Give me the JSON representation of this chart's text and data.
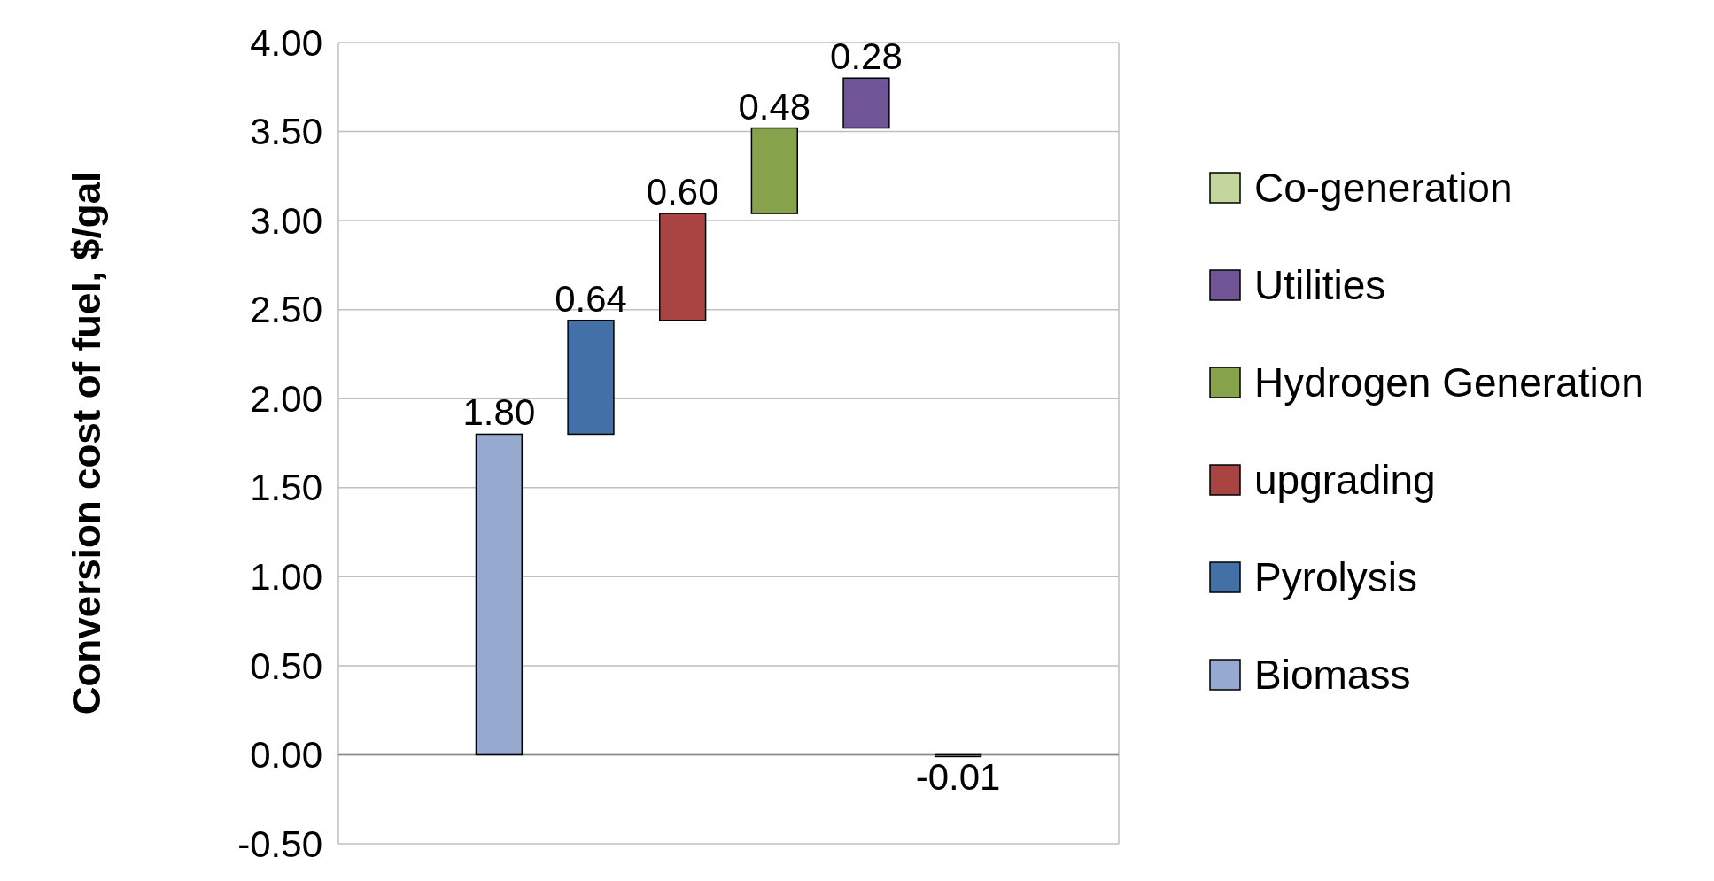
{
  "chart_data": {
    "type": "bar",
    "ylabel": "Conversion cost of fuel, $/gal",
    "categories": [
      null,
      null,
      null,
      null,
      null,
      null,
      null,
      null
    ],
    "series": [
      {
        "name": "Biomass",
        "color": "#95a9d1",
        "values": [
          null,
          1.8,
          null,
          null,
          null,
          null,
          null,
          null
        ],
        "base": [
          null,
          0,
          null,
          null,
          null,
          null,
          null,
          null
        ],
        "value_labels": [
          null,
          "1.80",
          null,
          null,
          null,
          null,
          null,
          null
        ]
      },
      {
        "name": "Pyrolysis",
        "color": "#4470a8",
        "values": [
          null,
          null,
          0.64,
          null,
          null,
          null,
          null,
          null
        ],
        "base": [
          null,
          null,
          1.8,
          null,
          null,
          null,
          null,
          null
        ],
        "value_labels": [
          null,
          null,
          "0.64",
          null,
          null,
          null,
          null,
          null
        ]
      },
      {
        "name": "upgrading",
        "color": "#a94442",
        "values": [
          null,
          null,
          null,
          0.6,
          null,
          null,
          null,
          null
        ],
        "base": [
          null,
          null,
          null,
          2.44,
          null,
          null,
          null,
          null
        ],
        "value_labels": [
          null,
          null,
          null,
          "0.60",
          null,
          null,
          null,
          null
        ]
      },
      {
        "name": "Hydrogen Generation",
        "color": "#86a34b",
        "values": [
          null,
          null,
          null,
          null,
          0.48,
          null,
          null,
          null
        ],
        "base": [
          null,
          null,
          null,
          null,
          3.04,
          null,
          null,
          null
        ],
        "value_labels": [
          null,
          null,
          null,
          null,
          "0.48",
          null,
          null,
          null
        ]
      },
      {
        "name": "Utilities",
        "color": "#6f5596",
        "values": [
          null,
          null,
          null,
          null,
          null,
          0.28,
          null,
          null
        ],
        "base": [
          null,
          null,
          null,
          null,
          null,
          3.52,
          null,
          null
        ],
        "value_labels": [
          null,
          null,
          null,
          null,
          null,
          "0.28",
          null,
          null
        ]
      },
      {
        "name": "Co-generation",
        "color": "#c3d69b",
        "values": [
          null,
          null,
          null,
          null,
          null,
          null,
          -0.01,
          null
        ],
        "base": [
          null,
          null,
          null,
          null,
          null,
          null,
          0,
          null
        ],
        "value_labels": [
          null,
          null,
          null,
          null,
          null,
          null,
          "-0.01",
          null
        ]
      }
    ],
    "ylim": [
      -0.5,
      4
    ],
    "yticks": [
      {
        "value": -0.5,
        "label": "-0.50"
      },
      {
        "value": 0,
        "label": "0.00"
      },
      {
        "value": 0.5,
        "label": "0.50"
      },
      {
        "value": 1,
        "label": "1.00"
      },
      {
        "value": 1.5,
        "label": "1.50"
      },
      {
        "value": 2,
        "label": "2.00"
      },
      {
        "value": 2.5,
        "label": "2.50"
      },
      {
        "value": 3,
        "label": "3.00"
      },
      {
        "value": 3.5,
        "label": "3.50"
      },
      {
        "value": 4,
        "label": "4.00"
      }
    ],
    "grid": "y",
    "legend": "right"
  }
}
